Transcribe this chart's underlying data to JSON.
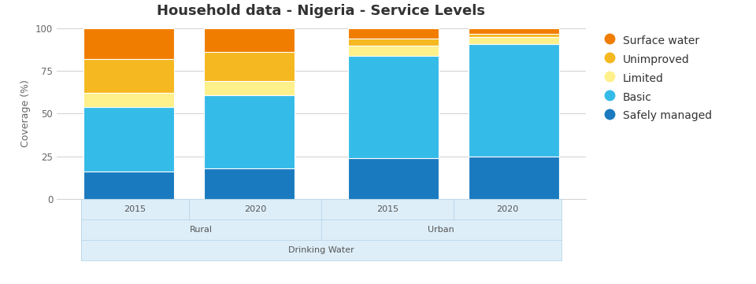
{
  "title": "Household data - Nigeria - Service Levels",
  "ylabel": "Coverage (%)",
  "groups": [
    "Rural",
    "Urban"
  ],
  "years": [
    "2015",
    "2020"
  ],
  "categories": [
    "Safely managed",
    "Basic",
    "Limited",
    "Unimproved",
    "Surface water"
  ],
  "colors": [
    "#1a7abf",
    "#35bbe8",
    "#fef08a",
    "#f5b820",
    "#f07d00"
  ],
  "data": {
    "Rural": {
      "2015": [
        16,
        38,
        8,
        20,
        18
      ],
      "2020": [
        18,
        43,
        8,
        17,
        14
      ]
    },
    "Urban": {
      "2015": [
        24,
        60,
        6,
        4,
        6
      ],
      "2020": [
        25,
        66,
        4,
        2,
        3
      ]
    }
  },
  "ylim": [
    0,
    100
  ],
  "yticks": [
    0,
    25,
    50,
    75,
    100
  ],
  "background_color": "#ffffff",
  "grid_color": "#d5d5d5",
  "title_fontsize": 13,
  "axis_label_fontsize": 9,
  "tick_fontsize": 8.5,
  "legend_fontsize": 10,
  "bar_width": 0.75,
  "bottom_label1": "Drinking Water",
  "bottom_label2_left": "Rural",
  "bottom_label2_right": "Urban"
}
